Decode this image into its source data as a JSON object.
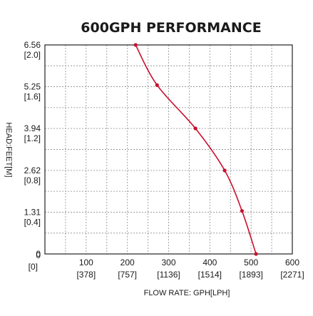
{
  "chart_data": {
    "type": "line",
    "title": "600GPH PERFORMANCE",
    "xlabel": "FLOW RATE: GPH[LPH]",
    "ylabel": "HEAD:FEET[M]",
    "xlim": [
      0,
      600
    ],
    "ylim": [
      0,
      6.56
    ],
    "grid": true,
    "x_ticks": [
      {
        "value": 0,
        "line1": "0",
        "line2": "[0]"
      },
      {
        "value": 100,
        "line1": "100",
        "line2": "[378]"
      },
      {
        "value": 200,
        "line1": "200",
        "line2": "[757]"
      },
      {
        "value": 300,
        "line1": "300",
        "line2": "[1136]"
      },
      {
        "value": 400,
        "line1": "400",
        "line2": "[1514]"
      },
      {
        "value": 500,
        "line1": "500",
        "line2": "[1893]"
      },
      {
        "value": 600,
        "line1": "600",
        "line2": "[2271]"
      }
    ],
    "y_ticks": [
      {
        "value": 0,
        "line1": "0",
        "line2": ""
      },
      {
        "value": 1.31,
        "line1": "1.31",
        "line2": "[0.4]"
      },
      {
        "value": 2.62,
        "line1": "2.62",
        "line2": "[0.8]"
      },
      {
        "value": 3.94,
        "line1": "3.94",
        "line2": "[1.2]"
      },
      {
        "value": 5.25,
        "line1": "5.25",
        "line2": "[1.6]"
      },
      {
        "value": 6.56,
        "line1": "6.56",
        "line2": "[2.0]"
      }
    ],
    "series": [
      {
        "color": "#c8102e",
        "points": [
          {
            "x": 220,
            "y": 6.56
          },
          {
            "x": 272,
            "y": 5.3
          },
          {
            "x": 365,
            "y": 3.94
          },
          {
            "x": 436,
            "y": 2.62
          },
          {
            "x": 478,
            "y": 1.35
          },
          {
            "x": 512,
            "y": 0
          }
        ]
      }
    ]
  }
}
